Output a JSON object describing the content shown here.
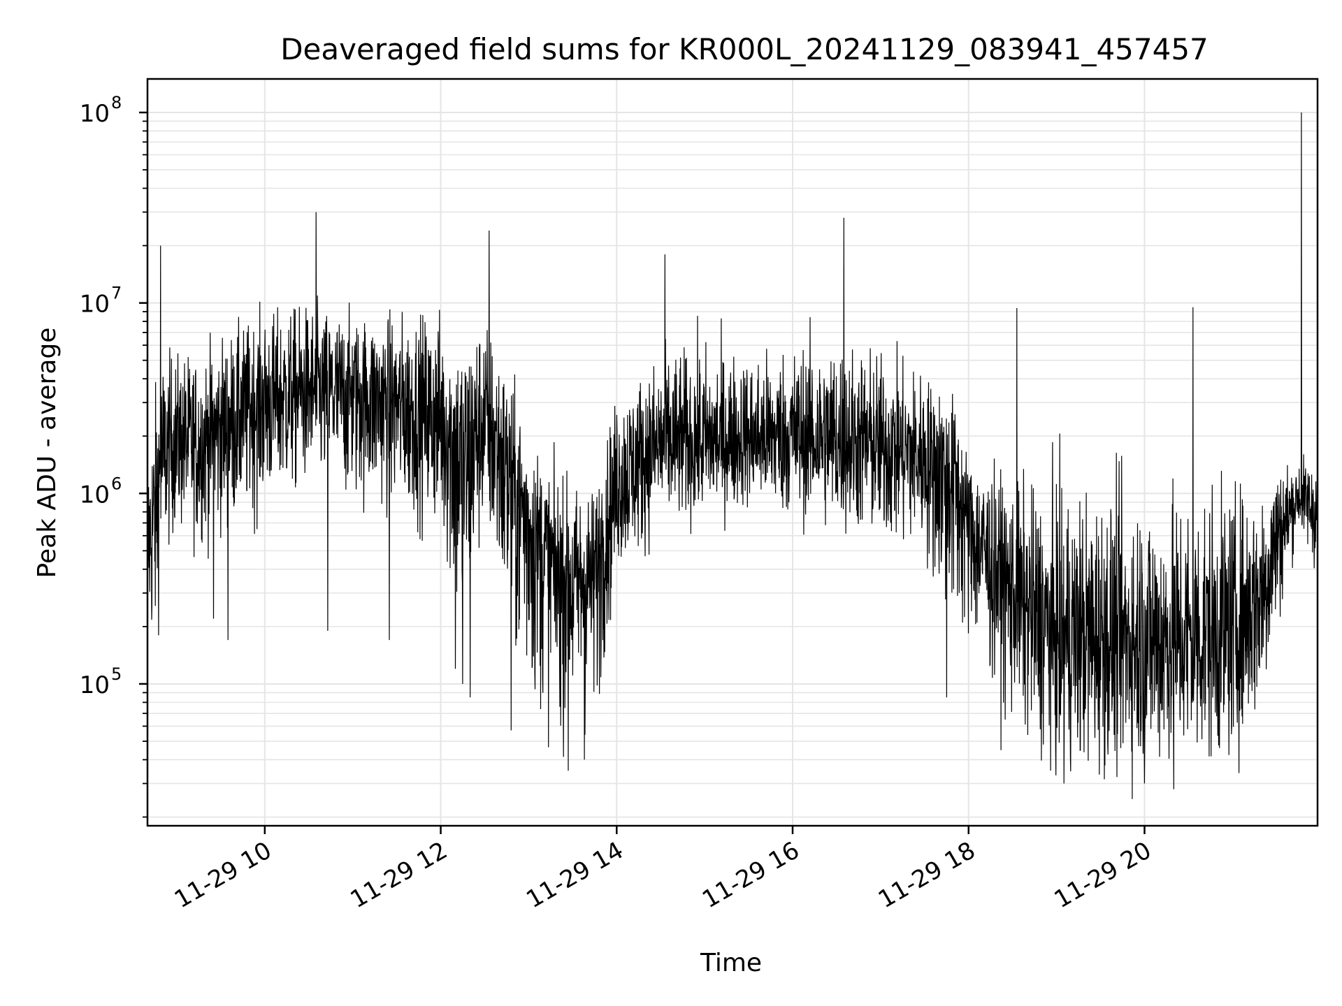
{
  "chart_data": {
    "type": "line",
    "title": "Deaveraged field sums for KR000L_20241129_083941_457457",
    "xlabel": "Time",
    "ylabel": "Peak ADU - average",
    "yscale": "log",
    "grid": true,
    "line_color": "#000000",
    "grid_color": "#e5e5e5",
    "xlim": [
      "2024-11-29 08:40",
      "2024-11-29 21:58"
    ],
    "ylim": [
      18000,
      150000000
    ],
    "x_ticks": [
      {
        "value": "2024-11-29 10:00",
        "label": "11-29 10"
      },
      {
        "value": "2024-11-29 12:00",
        "label": "11-29 12"
      },
      {
        "value": "2024-11-29 14:00",
        "label": "11-29 14"
      },
      {
        "value": "2024-11-29 16:00",
        "label": "11-29 16"
      },
      {
        "value": "2024-11-29 18:00",
        "label": "11-29 18"
      },
      {
        "value": "2024-11-29 20:00",
        "label": "11-29 20"
      }
    ],
    "y_ticks": [
      {
        "value": 100000,
        "base": "10",
        "exp": "5"
      },
      {
        "value": 1000000,
        "base": "10",
        "exp": "6"
      },
      {
        "value": 10000000,
        "base": "10",
        "exp": "7"
      },
      {
        "value": 100000000,
        "base": "10",
        "exp": "8"
      }
    ],
    "series": [
      {
        "envelope": {
          "x": [
            "08:40",
            "08:45",
            "08:50",
            "09:00",
            "09:15",
            "09:30",
            "09:45",
            "10:00",
            "10:30",
            "11:00",
            "11:30",
            "12:00",
            "12:15",
            "12:30",
            "12:45",
            "13:00",
            "13:15",
            "13:30",
            "13:45",
            "14:00",
            "14:30",
            "15:00",
            "15:30",
            "16:00",
            "16:30",
            "17:00",
            "17:30",
            "17:50",
            "18:00",
            "18:30",
            "19:00",
            "19:30",
            "20:00",
            "20:30",
            "21:00",
            "21:20",
            "21:30",
            "21:45",
            "21:58"
          ],
          "y_low": [
            200000,
            150000,
            500000,
            700000,
            600000,
            700000,
            800000,
            900000,
            1200000,
            1000000,
            900000,
            700000,
            150000,
            800000,
            200000,
            100000,
            80000,
            60000,
            70000,
            400000,
            700000,
            800000,
            900000,
            800000,
            700000,
            600000,
            500000,
            200000,
            200000,
            70000,
            40000,
            40000,
            40000,
            40000,
            45000,
            80000,
            200000,
            700000,
            400000
          ],
          "y_mid": [
            500000,
            800000,
            1500000,
            2000000,
            1800000,
            2200000,
            2800000,
            3200000,
            3500000,
            3500000,
            3000000,
            2500000,
            1500000,
            2500000,
            1500000,
            700000,
            450000,
            350000,
            400000,
            1200000,
            1800000,
            1800000,
            1900000,
            2000000,
            1900000,
            1800000,
            1600000,
            1400000,
            700000,
            300000,
            170000,
            170000,
            160000,
            170000,
            190000,
            300000,
            600000,
            950000,
            800000
          ],
          "y_high": [
            1500000,
            3000000,
            5000000,
            5000000,
            5000000,
            6000000,
            7000000,
            8000000,
            9000000,
            8000000,
            8000000,
            8000000,
            6000000,
            8000000,
            4000000,
            2000000,
            1200000,
            1000000,
            1000000,
            3000000,
            5000000,
            5500000,
            5000000,
            5500000,
            6000000,
            5000000,
            4000000,
            3000000,
            1500000,
            1000000,
            900000,
            900000,
            900000,
            900000,
            900000,
            1000000,
            1400000,
            1500000,
            1500000
          ]
        },
        "spikes": [
          {
            "x": "08:49",
            "y": 20000000
          },
          {
            "x": "10:35",
            "y": 30000000
          },
          {
            "x": "12:33",
            "y": 24000000
          },
          {
            "x": "14:33",
            "y": 18000000
          },
          {
            "x": "16:35",
            "y": 28000000
          },
          {
            "x": "18:33",
            "y": 9400000
          },
          {
            "x": "20:33",
            "y": 9500000
          },
          {
            "x": "21:47",
            "y": 100000000
          }
        ],
        "dips": [
          {
            "x": "09:25",
            "y": 220000
          },
          {
            "x": "09:35",
            "y": 170000
          },
          {
            "x": "10:43",
            "y": 250000
          },
          {
            "x": "10:43",
            "y": 190000
          },
          {
            "x": "11:25",
            "y": 170000
          },
          {
            "x": "12:10",
            "y": 120000
          },
          {
            "x": "12:15",
            "y": 100000
          },
          {
            "x": "12:20",
            "y": 85000
          },
          {
            "x": "12:48",
            "y": 57000
          },
          {
            "x": "13:27",
            "y": 35000
          },
          {
            "x": "13:38",
            "y": 40000
          },
          {
            "x": "17:45",
            "y": 85000
          },
          {
            "x": "19:05",
            "y": 30000
          },
          {
            "x": "20:00",
            "y": 30000
          },
          {
            "x": "20:20",
            "y": 28000
          }
        ]
      }
    ]
  }
}
